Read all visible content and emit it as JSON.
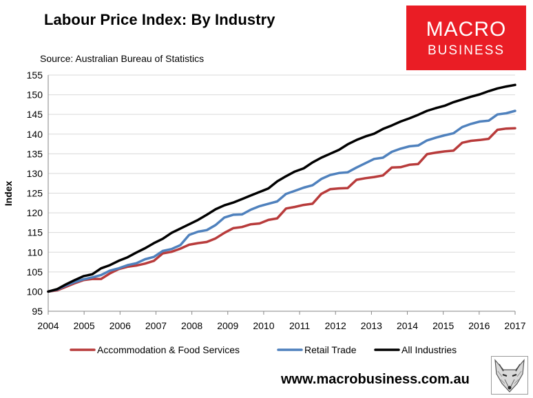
{
  "header": {
    "title": "Labour Price Index: By Industry",
    "source": "Source: Australian Bureau of Statistics"
  },
  "logo": {
    "line1": "MACRO",
    "line2": "BUSINESS"
  },
  "footer": {
    "url": "www.macrobusiness.com.au"
  },
  "colors": {
    "accommodation": "#b83b3b",
    "retail": "#4f81bd",
    "all": "#000000",
    "brand_red": "#ea1d25"
  },
  "chart_data": {
    "type": "line",
    "title": "Labour Price Index: By Industry",
    "xlabel": "",
    "ylabel": "Index",
    "ylim": [
      95,
      155
    ],
    "yticks": [
      95,
      100,
      105,
      110,
      115,
      120,
      125,
      130,
      135,
      140,
      145,
      150,
      155
    ],
    "xlim": [
      2004,
      2017
    ],
    "xticks": [
      "2004",
      "2005",
      "2006",
      "2007",
      "2008",
      "2009",
      "2010",
      "2011",
      "2012",
      "2013",
      "2014",
      "2015",
      "2016",
      "2017"
    ],
    "grid": true,
    "legend_position": "bottom",
    "series": [
      {
        "name": "Accommodation & Food Services",
        "color": "#b83b3b",
        "values": [
          100.0,
          100.3,
          101.2,
          102.1,
          102.9,
          103.2,
          103.2,
          104.6,
          105.7,
          106.3,
          106.6,
          107.1,
          107.8,
          109.7,
          110.1,
          110.9,
          111.9,
          112.3,
          112.6,
          113.5,
          114.9,
          116.1,
          116.4,
          117.1,
          117.3,
          118.2,
          118.6,
          121.1,
          121.5,
          122.0,
          122.3,
          124.8,
          126.0,
          126.2,
          126.3,
          128.4,
          128.8,
          129.1,
          129.5,
          131.5,
          131.6,
          132.2,
          132.4,
          134.9,
          135.3,
          135.6,
          135.8,
          137.8,
          138.3,
          138.5,
          138.8,
          141.1,
          141.4,
          141.5
        ]
      },
      {
        "name": "Retail Trade",
        "color": "#4f81bd",
        "values": [
          100.0,
          100.5,
          101.5,
          102.4,
          103.1,
          103.6,
          104.2,
          105.3,
          105.9,
          106.7,
          107.2,
          108.2,
          108.8,
          110.3,
          110.8,
          111.8,
          114.4,
          115.2,
          115.6,
          116.9,
          118.8,
          119.5,
          119.6,
          120.8,
          121.7,
          122.3,
          122.9,
          124.8,
          125.6,
          126.4,
          127.0,
          128.6,
          129.6,
          130.1,
          130.3,
          131.5,
          132.6,
          133.7,
          134.0,
          135.5,
          136.3,
          136.9,
          137.1,
          138.4,
          139.1,
          139.7,
          140.2,
          141.8,
          142.6,
          143.2,
          143.4,
          145.0,
          145.3,
          145.9
        ]
      },
      {
        "name": "All Industries",
        "color": "#000000",
        "values": [
          100.0,
          100.6,
          101.8,
          102.9,
          103.9,
          104.4,
          105.9,
          106.7,
          107.8,
          108.7,
          109.9,
          111.0,
          112.3,
          113.4,
          114.9,
          116.0,
          117.1,
          118.2,
          119.5,
          120.9,
          121.9,
          122.6,
          123.5,
          124.4,
          125.3,
          126.2,
          128.0,
          129.3,
          130.5,
          131.3,
          132.8,
          134.0,
          135.0,
          136.0,
          137.4,
          138.5,
          139.4,
          140.1,
          141.3,
          142.2,
          143.2,
          144.0,
          144.9,
          145.9,
          146.6,
          147.2,
          148.1,
          148.8,
          149.5,
          150.1,
          150.9,
          151.6,
          152.1,
          152.5
        ]
      }
    ]
  }
}
